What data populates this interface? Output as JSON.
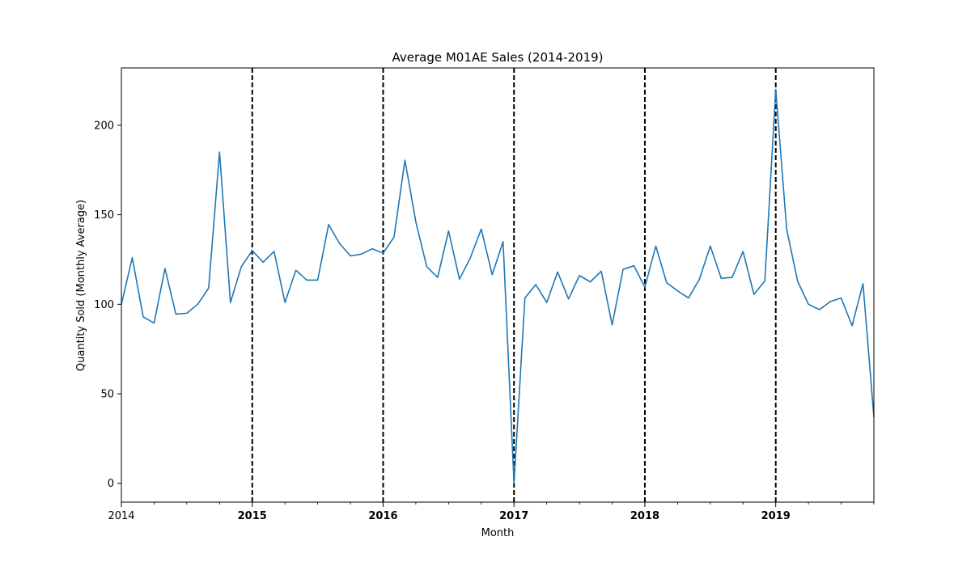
{
  "chart_data": {
    "type": "line",
    "title": "Average M01AE Sales (2014-2019)",
    "xlabel": "Month",
    "ylabel": "Quantity Sold (Monthly Average)",
    "x_start": "2014-01",
    "x_end": "2019-10",
    "ylim": [
      -10.5,
      232
    ],
    "yticks": [
      0,
      50,
      100,
      150,
      200
    ],
    "xticks": [
      {
        "label": "2014",
        "bold": false
      },
      {
        "label": "2015",
        "bold": true
      },
      {
        "label": "2016",
        "bold": true
      },
      {
        "label": "2017",
        "bold": true
      },
      {
        "label": "2018",
        "bold": true
      },
      {
        "label": "2019",
        "bold": true
      }
    ],
    "vlines": [
      "2015-01",
      "2016-01",
      "2017-01",
      "2018-01",
      "2019-01"
    ],
    "grid": false,
    "series": [
      {
        "color": "#1f77b4",
        "x": [
          "2014-01",
          "2014-02",
          "2014-03",
          "2014-04",
          "2014-05",
          "2014-06",
          "2014-07",
          "2014-08",
          "2014-09",
          "2014-10",
          "2014-11",
          "2014-12",
          "2015-01",
          "2015-02",
          "2015-03",
          "2015-04",
          "2015-05",
          "2015-06",
          "2015-07",
          "2015-08",
          "2015-09",
          "2015-10",
          "2015-11",
          "2015-12",
          "2016-01",
          "2016-02",
          "2016-03",
          "2016-04",
          "2016-05",
          "2016-06",
          "2016-07",
          "2016-08",
          "2016-09",
          "2016-10",
          "2016-11",
          "2016-12",
          "2017-01",
          "2017-02",
          "2017-03",
          "2017-04",
          "2017-05",
          "2017-06",
          "2017-07",
          "2017-08",
          "2017-09",
          "2017-10",
          "2017-11",
          "2017-12",
          "2018-01",
          "2018-02",
          "2018-03",
          "2018-04",
          "2018-05",
          "2018-06",
          "2018-07",
          "2018-08",
          "2018-09",
          "2018-10",
          "2018-11",
          "2018-12",
          "2019-01",
          "2019-02",
          "2019-03",
          "2019-04",
          "2019-05",
          "2019-06",
          "2019-07",
          "2019-08",
          "2019-09",
          "2019-10"
        ],
        "values": [
          100,
          126,
          93,
          89.5,
          120,
          94.5,
          95,
          100,
          109,
          185,
          101,
          121,
          130,
          123.5,
          129.5,
          101,
          119,
          113.5,
          113.5,
          144.5,
          134,
          127,
          128,
          131,
          128.5,
          137.5,
          180.5,
          146,
          121,
          115,
          141,
          114,
          126,
          142,
          116.5,
          135,
          0,
          103.5,
          111,
          101,
          118,
          103,
          116,
          112.5,
          118.5,
          88.5,
          119.5,
          121.5,
          109.5,
          132.5,
          112,
          107.5,
          103.5,
          114,
          132.5,
          114.5,
          115,
          129.5,
          105.5,
          113,
          220,
          142,
          113,
          100,
          97,
          101.5,
          103.5,
          88,
          111.5,
          37
        ]
      }
    ]
  }
}
